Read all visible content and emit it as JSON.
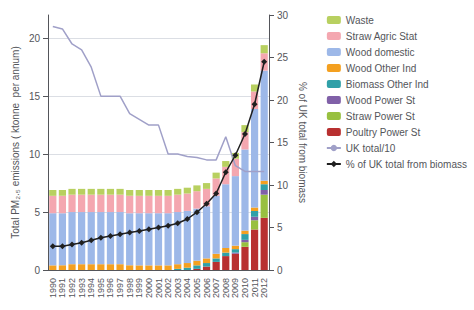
{
  "chart_data": {
    "type": "bar",
    "stacked": true,
    "grid": true,
    "legend": "right",
    "ylabel": "Total PM₂.₅ emissions ( ktonne  per annum)",
    "y2label": "% of UK total from biomass",
    "categories": [
      "1990",
      "1991",
      "1992",
      "1993",
      "1994",
      "1995",
      "1996",
      "1997",
      "1998",
      "1999",
      "2000",
      "2001",
      "2002",
      "2003",
      "2004",
      "2005",
      "2006",
      "2007",
      "2008",
      "2009",
      "2010",
      "2011",
      "2012"
    ],
    "ylim": [
      0,
      22
    ],
    "yticks": [
      0,
      5,
      10,
      15,
      20
    ],
    "y2lim": [
      0,
      30
    ],
    "y2ticks": [
      0,
      5,
      10,
      15,
      20,
      25,
      30
    ],
    "series": [
      {
        "name": "Poultry Power St",
        "type": "bar",
        "color": "#b83030",
        "values": [
          0.0,
          0.0,
          0.0,
          0.0,
          0.0,
          0.0,
          0.0,
          0.0,
          0.0,
          0.0,
          0.0,
          0.0,
          0.0,
          0.0,
          0.0,
          0.1,
          0.3,
          0.7,
          1.2,
          1.4,
          2.0,
          3.5,
          4.5
        ]
      },
      {
        "name": "Straw Power St",
        "type": "bar",
        "color": "#98c040",
        "values": [
          0.0,
          0.0,
          0.0,
          0.0,
          0.0,
          0.0,
          0.0,
          0.0,
          0.0,
          0.0,
          0.0,
          0.0,
          0.0,
          0.0,
          0.0,
          0.0,
          0.0,
          0.0,
          0.0,
          0.0,
          0.4,
          0.8,
          2.0
        ]
      },
      {
        "name": "Wood Power St",
        "type": "bar",
        "color": "#8060a8",
        "values": [
          0.0,
          0.0,
          0.0,
          0.0,
          0.0,
          0.0,
          0.0,
          0.0,
          0.0,
          0.0,
          0.0,
          0.0,
          0.0,
          0.0,
          0.0,
          0.0,
          0.0,
          0.0,
          0.0,
          0.1,
          0.2,
          0.3,
          0.4
        ]
      },
      {
        "name": "Biomass Other Ind",
        "type": "bar",
        "color": "#30a0a8",
        "values": [
          0.0,
          0.0,
          0.0,
          0.0,
          0.0,
          0.0,
          0.0,
          0.0,
          0.0,
          0.0,
          0.0,
          0.0,
          0.0,
          0.1,
          0.2,
          0.3,
          0.3,
          0.3,
          0.3,
          0.3,
          0.5,
          0.5,
          0.5
        ]
      },
      {
        "name": "Wood Other Ind",
        "type": "bar",
        "color": "#f4a020",
        "values": [
          0.4,
          0.4,
          0.5,
          0.5,
          0.5,
          0.5,
          0.5,
          0.5,
          0.4,
          0.4,
          0.4,
          0.4,
          0.4,
          0.4,
          0.4,
          0.4,
          0.4,
          0.4,
          0.4,
          0.3,
          0.3,
          0.3,
          0.3
        ]
      },
      {
        "name": "Wood domestic",
        "type": "bar",
        "color": "#9db8e8",
        "values": [
          4.5,
          4.5,
          4.5,
          4.5,
          4.5,
          4.5,
          4.5,
          4.5,
          4.5,
          4.5,
          4.5,
          4.5,
          4.5,
          4.5,
          4.5,
          4.5,
          4.5,
          5.0,
          5.5,
          6.0,
          7.0,
          8.5,
          9.5
        ]
      },
      {
        "name": "Straw Agric Stat",
        "type": "bar",
        "color": "#f4a7b0",
        "values": [
          1.5,
          1.5,
          1.5,
          1.5,
          1.5,
          1.5,
          1.5,
          1.5,
          1.5,
          1.5,
          1.5,
          1.5,
          1.5,
          1.5,
          1.5,
          1.5,
          1.5,
          1.5,
          1.5,
          1.5,
          1.5,
          1.5,
          1.5
        ]
      },
      {
        "name": "Waste",
        "type": "bar",
        "color": "#b8d060",
        "values": [
          0.5,
          0.5,
          0.5,
          0.5,
          0.5,
          0.5,
          0.5,
          0.5,
          0.5,
          0.5,
          0.5,
          0.5,
          0.5,
          0.5,
          0.5,
          0.5,
          0.5,
          0.5,
          0.5,
          0.5,
          0.6,
          0.6,
          0.7
        ]
      },
      {
        "name": "UK total/10",
        "type": "line",
        "color": "#a0a0c8",
        "marker": "none",
        "line_style": "solid",
        "values": [
          21.0,
          20.8,
          19.5,
          19.0,
          17.5,
          15.0,
          15.0,
          15.0,
          13.5,
          13.0,
          12.5,
          12.5,
          10.0,
          10.0,
          9.8,
          9.7,
          9.5,
          9.5,
          11.5,
          9.0,
          8.5,
          8.5,
          8.5
        ]
      },
      {
        "name": "% of UK total from biomass",
        "type": "line",
        "axis": "y2",
        "color": "#202020",
        "marker": "diamond",
        "line_style": "solid",
        "values": [
          2.8,
          2.8,
          3.0,
          3.2,
          3.5,
          3.8,
          4.0,
          4.2,
          4.4,
          4.6,
          4.8,
          5.0,
          5.2,
          5.5,
          6.0,
          6.8,
          7.8,
          9.0,
          11.5,
          13.5,
          16.0,
          19.5,
          24.5
        ]
      }
    ]
  }
}
